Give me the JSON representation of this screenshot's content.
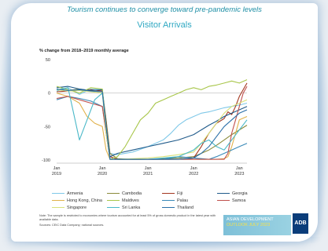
{
  "headline": "Tourism continues to converge toward pre-pandemic levels",
  "chart_data": {
    "type": "line",
    "title": "Visitor Arrivals",
    "ylabel": "% change from 2018–2019 monthly average",
    "xlabel": "",
    "ylim": [
      -100,
      50
    ],
    "yticks": [
      50,
      0,
      -50,
      -100
    ],
    "xlim": [
      0,
      50
    ],
    "xticks": [
      {
        "pos": 0,
        "label": "Jan\n2019"
      },
      {
        "pos": 12,
        "label": "Jan\n2020"
      },
      {
        "pos": 24,
        "label": "Jan\n2021"
      },
      {
        "pos": 36,
        "label": "Jan\n2022"
      },
      {
        "pos": 48,
        "label": "Jan\n2023"
      }
    ],
    "grid": false,
    "legend_position": "bottom",
    "series": [
      {
        "name": "Armenia",
        "color": "#7fc8e8",
        "x": [
          0,
          3,
          6,
          9,
          12,
          13,
          14,
          16,
          20,
          24,
          28,
          30,
          32,
          34,
          36,
          38,
          40,
          42,
          44,
          46,
          48,
          50
        ],
        "values": [
          3,
          8,
          -2,
          6,
          5,
          -40,
          -90,
          -92,
          -88,
          -80,
          -70,
          -60,
          -48,
          -40,
          -35,
          -30,
          -28,
          -25,
          -22,
          -20,
          -18,
          -15
        ]
      },
      {
        "name": "Cambodia",
        "color": "#8a8a3a",
        "x": [
          0,
          3,
          6,
          9,
          12,
          13,
          14,
          16,
          20,
          24,
          28,
          32,
          36,
          38,
          40,
          42,
          44,
          46,
          48,
          50
        ],
        "values": [
          5,
          4,
          6,
          3,
          2,
          -40,
          -90,
          -98,
          -99,
          -99,
          -98,
          -97,
          -95,
          -90,
          -85,
          -78,
          -70,
          -62,
          -55,
          -48
        ]
      },
      {
        "name": "Fiji",
        "color": "#a3371f",
        "x": [
          0,
          3,
          6,
          9,
          12,
          13,
          14,
          16,
          20,
          24,
          28,
          32,
          36,
          38,
          40,
          42,
          44,
          45,
          46,
          47,
          48,
          50
        ],
        "values": [
          2,
          3,
          4,
          5,
          3,
          -45,
          -95,
          -99,
          -99,
          -99,
          -99,
          -99,
          -97,
          -80,
          -60,
          -45,
          -38,
          -28,
          -32,
          -20,
          -5,
          15
        ]
      },
      {
        "name": "Georgia",
        "color": "#1f5a8a",
        "x": [
          0,
          3,
          6,
          9,
          12,
          13,
          14,
          16,
          20,
          24,
          28,
          32,
          36,
          38,
          40,
          42,
          44,
          46,
          48,
          50
        ],
        "values": [
          8,
          10,
          6,
          4,
          5,
          -50,
          -95,
          -90,
          -85,
          -80,
          -75,
          -70,
          -62,
          -55,
          -48,
          -42,
          -35,
          -30,
          -25,
          -20
        ]
      },
      {
        "name": "Hong Kong, China",
        "color": "#e0b14a",
        "x": [
          0,
          3,
          6,
          8,
          10,
          12,
          13,
          14,
          16,
          20,
          24,
          28,
          32,
          36,
          40,
          42,
          44,
          45,
          46,
          47,
          48,
          50
        ],
        "values": [
          0,
          -5,
          -15,
          -35,
          -45,
          -50,
          -85,
          -99,
          -99,
          -99,
          -99,
          -99,
          -99,
          -99,
          -99,
          -99,
          -98,
          -95,
          -80,
          -60,
          -40,
          -35
        ]
      },
      {
        "name": "Maldives",
        "color": "#a8c64a",
        "x": [
          0,
          3,
          6,
          9,
          12,
          13,
          14,
          16,
          18,
          20,
          22,
          24,
          26,
          28,
          30,
          32,
          34,
          36,
          38,
          40,
          42,
          44,
          46,
          48,
          50
        ],
        "values": [
          10,
          5,
          0,
          8,
          6,
          -50,
          -99,
          -95,
          -80,
          -60,
          -40,
          -30,
          -15,
          -10,
          -5,
          0,
          5,
          8,
          5,
          10,
          12,
          15,
          18,
          15,
          20
        ]
      },
      {
        "name": "Palau",
        "color": "#3a8ab8",
        "x": [
          0,
          3,
          6,
          9,
          12,
          13,
          14,
          16,
          20,
          24,
          28,
          32,
          36,
          40,
          42,
          44,
          46,
          48,
          50
        ],
        "values": [
          -10,
          -5,
          -8,
          -12,
          -20,
          -60,
          -99,
          -99,
          -99,
          -99,
          -99,
          -95,
          -97,
          -99,
          -95,
          -90,
          -85,
          -80,
          -75
        ]
      },
      {
        "name": "Samoa",
        "color": "#c0504d",
        "x": [
          0,
          3,
          6,
          9,
          12,
          13,
          14,
          16,
          20,
          24,
          28,
          32,
          36,
          40,
          42,
          44,
          45,
          46,
          47,
          48,
          49,
          50
        ],
        "values": [
          -8,
          -5,
          -10,
          -15,
          -20,
          -60,
          -99,
          -99,
          -99,
          -99,
          -99,
          -99,
          -99,
          -99,
          -99,
          -99,
          -90,
          -60,
          -40,
          -20,
          0,
          10
        ]
      },
      {
        "name": "Singapore",
        "color": "#d8e07a",
        "x": [
          0,
          3,
          6,
          9,
          12,
          13,
          14,
          16,
          20,
          24,
          28,
          32,
          36,
          38,
          40,
          42,
          44,
          46,
          48,
          50
        ],
        "values": [
          5,
          3,
          4,
          2,
          0,
          -60,
          -99,
          -99,
          -98,
          -97,
          -95,
          -92,
          -88,
          -75,
          -60,
          -45,
          -30,
          -20,
          -15,
          -10
        ]
      },
      {
        "name": "Sri Lanka",
        "color": "#4ab8c8",
        "x": [
          0,
          3,
          6,
          8,
          10,
          12,
          13,
          14,
          16,
          20,
          24,
          28,
          32,
          36,
          38,
          40,
          42,
          44,
          46,
          48,
          50
        ],
        "values": [
          5,
          8,
          -70,
          -40,
          -10,
          0,
          -50,
          -99,
          -99,
          -99,
          -99,
          -97,
          -95,
          -85,
          -75,
          -70,
          -80,
          -85,
          -70,
          -55,
          -40
        ]
      },
      {
        "name": "Thailand",
        "color": "#2a6fa8",
        "x": [
          0,
          3,
          6,
          9,
          12,
          13,
          14,
          16,
          20,
          24,
          28,
          32,
          36,
          38,
          40,
          42,
          44,
          46,
          48,
          50
        ],
        "values": [
          6,
          4,
          5,
          3,
          2,
          -50,
          -99,
          -99,
          -99,
          -99,
          -99,
          -99,
          -97,
          -90,
          -80,
          -65,
          -50,
          -40,
          -30,
          -25
        ]
      }
    ]
  },
  "footer": {
    "note": "Note: The sample is restricted to economies where tourism accounted for at least 5% of gross domestic product in the latest year with available data.",
    "source": "Sources: CEIC Data Company; national sources."
  },
  "branding": {
    "banner_line1": "ASIAN DEVELOPMENT",
    "banner_line2": "OUTLOOK JULY 2023",
    "logo_text": "ADB"
  }
}
